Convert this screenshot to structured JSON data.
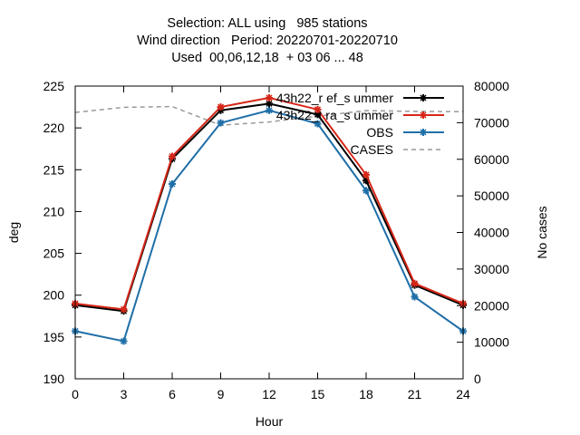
{
  "chart_data": {
    "type": "line",
    "title_lines": [
      "Selection: ALL using   985 stations",
      "Wind direction   Period: 20220701-20220710",
      "Used  00,06,12,18  + 03 06 ... 48"
    ],
    "xlabel": "Hour",
    "ylabel": "deg",
    "y2label": "No cases",
    "x": [
      0,
      3,
      6,
      9,
      12,
      15,
      18,
      21,
      24
    ],
    "xlim": [
      0,
      24
    ],
    "ylim": [
      190,
      225
    ],
    "y2lim": [
      0,
      80000
    ],
    "xticks": [
      "0",
      "3",
      "6",
      "9",
      "12",
      "15",
      "18",
      "21",
      "24"
    ],
    "yticks": [
      "190",
      "195",
      "200",
      "205",
      "210",
      "215",
      "220",
      "225"
    ],
    "y2ticks": [
      "0",
      "10000",
      "20000",
      "30000",
      "40000",
      "50000",
      "60000",
      "70000",
      "80000"
    ],
    "grid": false,
    "legend_position": "top-right",
    "series": [
      {
        "name": "43h22_ref_summer",
        "legend_label": "43h22_r ef_s ummer",
        "axis": "y",
        "color": "#000000",
        "marker": "plus",
        "values": [
          198.8,
          198.1,
          216.3,
          222.1,
          222.9,
          221.6,
          213.7,
          201.2,
          198.8
        ]
      },
      {
        "name": "43h22_tra_summer",
        "legend_label": "43h22_t ra_s ummer",
        "axis": "y",
        "color": "#d62718",
        "marker": "plus",
        "values": [
          199.0,
          198.3,
          216.6,
          222.5,
          223.6,
          222.2,
          214.4,
          201.4,
          199.0
        ]
      },
      {
        "name": "OBS",
        "legend_label": "OBS",
        "axis": "y",
        "color": "#1f6fa8",
        "marker": "plus",
        "values": [
          195.7,
          194.5,
          213.3,
          220.6,
          222.1,
          220.5,
          212.5,
          199.8,
          195.7
        ]
      },
      {
        "name": "CASES",
        "legend_label": "CASES",
        "axis": "y2",
        "color": "#999999",
        "dashed": true,
        "values": [
          72800,
          74200,
          74400,
          69300,
          70200,
          71800,
          73300,
          73100,
          73000
        ]
      }
    ]
  }
}
